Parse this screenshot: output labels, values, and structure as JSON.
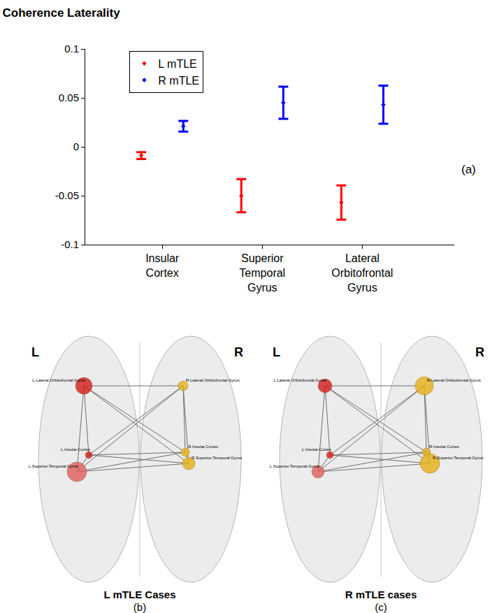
{
  "chart_data": {
    "type": "scatter",
    "title": "Coherence Laterality",
    "categories": [
      "Insular Cortex",
      "Superior Temporal Gyrus",
      "Lateral Orbitofrontal Gyrus"
    ],
    "series": [
      {
        "name": "L mTLE",
        "color": "#ff0000",
        "marker": "diamond",
        "values": [
          -0.009,
          -0.05,
          -0.057
        ],
        "error": [
          0.0035,
          0.017,
          0.0175
        ]
      },
      {
        "name": "R mTLE",
        "color": "#0000ff",
        "marker": "diamond",
        "values": [
          0.021,
          0.045,
          0.043
        ],
        "error": [
          0.0055,
          0.0165,
          0.0195
        ]
      }
    ],
    "ylim": [
      -0.1,
      0.1
    ],
    "yticks": [
      -0.1,
      -0.05,
      0,
      0.05,
      0.1
    ],
    "grid": false,
    "legend": "upper left",
    "annotations": [
      "(a)"
    ]
  },
  "diagrams": [
    {
      "label": "(b)",
      "caption": "L mTLE Cases",
      "left": "L",
      "right": "R",
      "nodes": [
        {
          "label": "L.Lateral.Orbitofrontal.Gyrus",
          "color": "#d62828",
          "size": 12
        },
        {
          "label": "R.Lateral.Orbitofrontal.Gyrus",
          "color": "#e6b422",
          "size": 7
        },
        {
          "label": "L.Insular.Cortex",
          "color": "#d62828",
          "size": 5
        },
        {
          "label": "R.Insular.Cortex",
          "color": "#e6b422",
          "size": 6
        },
        {
          "label": "L.Superior.Temporal.Gyrus",
          "color": "#e06666",
          "size": 14
        },
        {
          "label": "R.Superior.Temporal.Gyrus",
          "color": "#e6b422",
          "size": 9
        }
      ],
      "edges": [
        [
          0,
          1
        ],
        [
          0,
          2
        ],
        [
          0,
          3
        ],
        [
          0,
          4
        ],
        [
          0,
          5
        ],
        [
          1,
          2
        ],
        [
          1,
          3
        ],
        [
          1,
          4
        ],
        [
          1,
          5
        ],
        [
          2,
          3
        ],
        [
          2,
          4
        ],
        [
          2,
          5
        ],
        [
          3,
          4
        ],
        [
          3,
          5
        ],
        [
          4,
          5
        ]
      ]
    },
    {
      "label": "(c)",
      "caption": "R mTLE cases",
      "left": "L",
      "right": "R",
      "nodes": [
        {
          "label": "L.Lateral.Orbitofrontal.Gyrus",
          "color": "#d62828",
          "size": 10
        },
        {
          "label": "R.Lateral.Orbitofrontal.Gyrus",
          "color": "#e6b422",
          "size": 13
        },
        {
          "label": "L.Insular.Cortex",
          "color": "#d62828",
          "size": 5
        },
        {
          "label": "R.Insular.Cortex",
          "color": "#e6b422",
          "size": 6
        },
        {
          "label": "L.Superior.Temporal.Gyrus",
          "color": "#e06666",
          "size": 9
        },
        {
          "label": "R.Superior.Temporal.Gyrus",
          "color": "#e6b422",
          "size": 14
        }
      ],
      "edges": [
        [
          0,
          1
        ],
        [
          0,
          2
        ],
        [
          0,
          3
        ],
        [
          0,
          4
        ],
        [
          0,
          5
        ],
        [
          1,
          2
        ],
        [
          1,
          3
        ],
        [
          1,
          4
        ],
        [
          1,
          5
        ],
        [
          2,
          3
        ],
        [
          2,
          4
        ],
        [
          2,
          5
        ],
        [
          3,
          4
        ],
        [
          3,
          5
        ],
        [
          4,
          5
        ]
      ]
    }
  ]
}
